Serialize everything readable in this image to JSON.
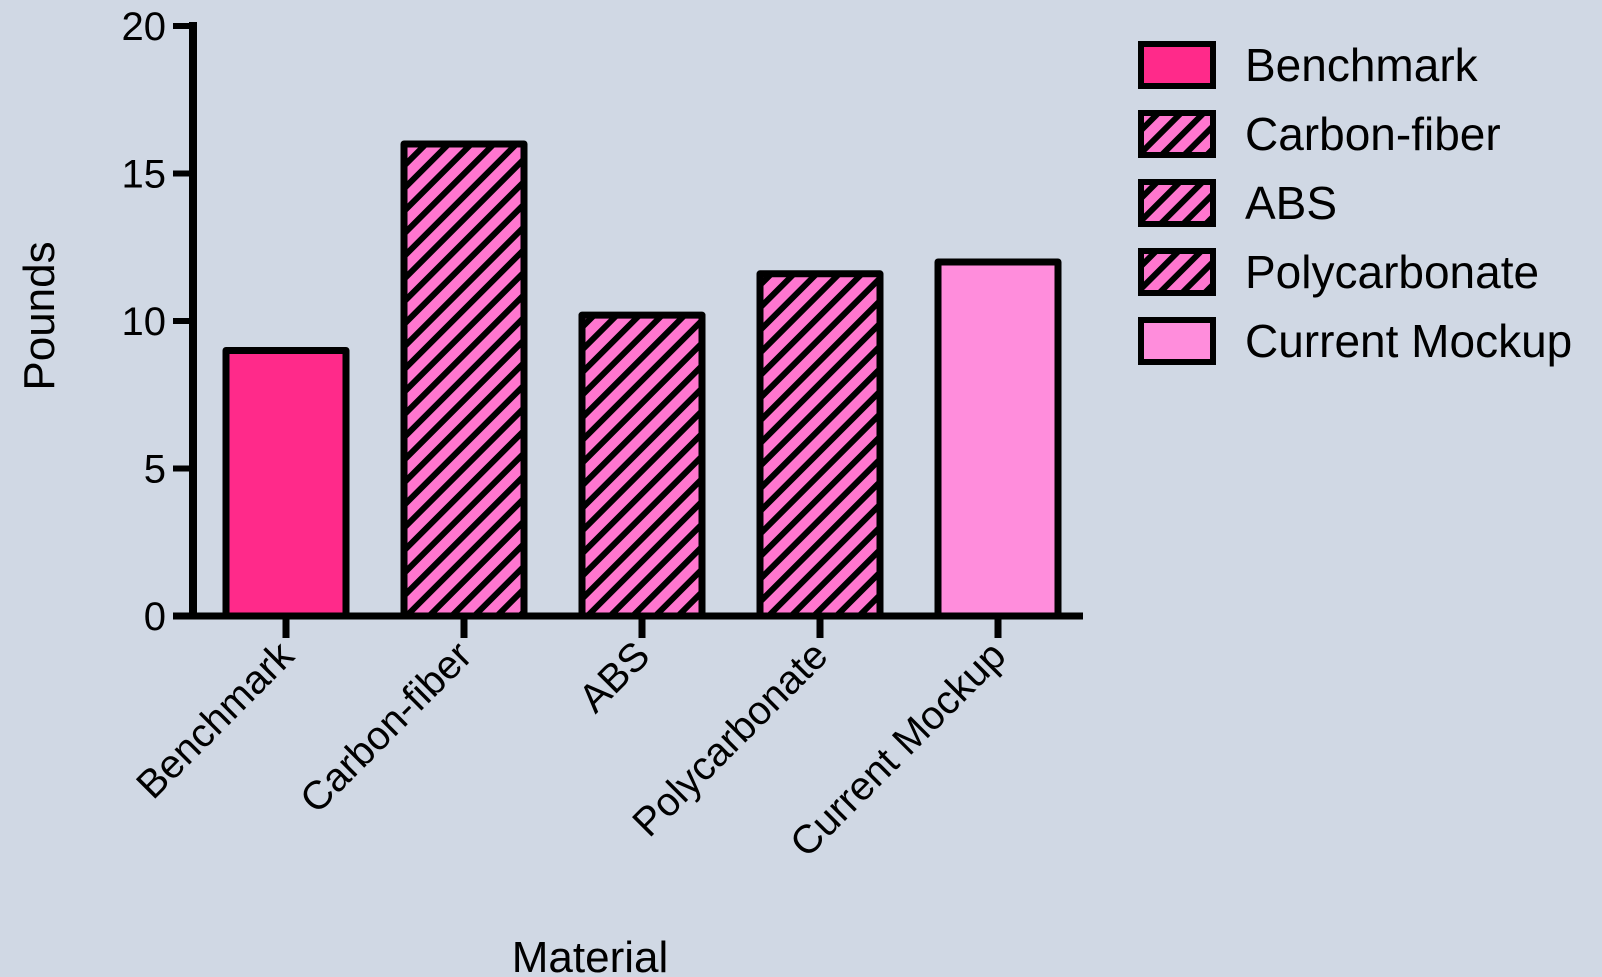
{
  "chart_data": {
    "type": "bar",
    "title": "",
    "xlabel": "Material",
    "ylabel": "Pounds",
    "ylim": [
      0,
      20
    ],
    "yticks": [
      0,
      5,
      10,
      15,
      20
    ],
    "grid": false,
    "legend_position": "top-right",
    "categories": [
      "Benchmark",
      "Carbon-fiber",
      "ABS",
      "Polycarbonate",
      "Current Mockup"
    ],
    "values": [
      9,
      16,
      10.2,
      11.6,
      12
    ],
    "bar_fills": [
      {
        "color": "#ff2a8a",
        "pattern": "solid"
      },
      {
        "color": "#ff76cf",
        "pattern": "hatched"
      },
      {
        "color": "#ff76cf",
        "pattern": "hatched"
      },
      {
        "color": "#ff76cf",
        "pattern": "hatched"
      },
      {
        "color": "#ff8ddc",
        "pattern": "solid"
      }
    ],
    "legend": [
      "Benchmark",
      "Carbon-fiber",
      "ABS",
      "Polycarbonate",
      "Current Mockup"
    ]
  }
}
